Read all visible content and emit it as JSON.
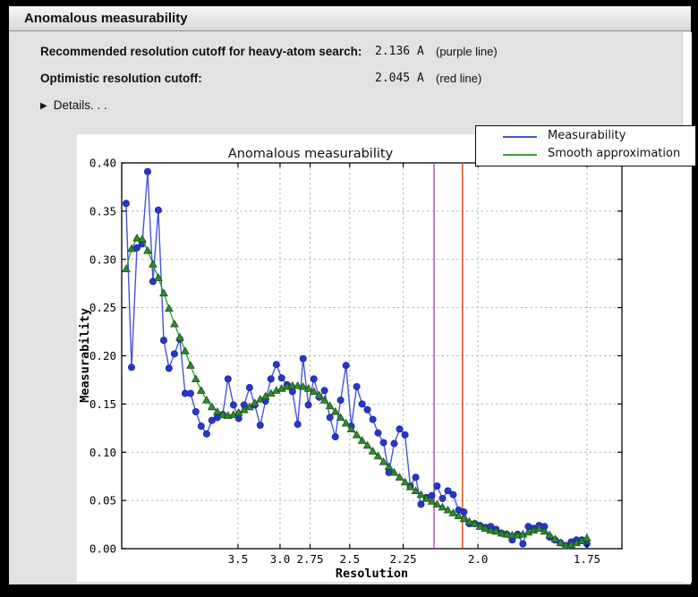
{
  "window": {
    "title": "Anomalous measurability"
  },
  "info_rows": [
    {
      "label": "Recommended resolution cutoff for heavy-atom search:",
      "value": "2.136 A",
      "note": "(purple line)"
    },
    {
      "label": "Optimistic resolution cutoff:",
      "value": "2.045 A",
      "note": "(red line)"
    }
  ],
  "details": {
    "icon": "right-triangle",
    "label": "Details. . ."
  },
  "chart_data": {
    "type": "line",
    "title": "Anomalous measurability",
    "xlabel": "Resolution",
    "ylabel": "Measurability",
    "x_axis_scale": "linear in 1/d^2, resolution d in Angstrom decreasing to the right",
    "x_range_inv_d_sq": [
      0,
      0.351
    ],
    "ylim": [
      0,
      0.4
    ],
    "y_ticks": [
      "0.00",
      "0.05",
      "0.10",
      "0.15",
      "0.20",
      "0.25",
      "0.30",
      "0.35",
      "0.40"
    ],
    "x_ticks": [
      {
        "label": "3.5",
        "inv_d_sq": 0.0816
      },
      {
        "label": "3.0",
        "inv_d_sq": 0.1111
      },
      {
        "label": "2.75",
        "inv_d_sq": 0.1322
      },
      {
        "label": "2.5",
        "inv_d_sq": 0.16
      },
      {
        "label": "2.25",
        "inv_d_sq": 0.1975
      },
      {
        "label": "2.0",
        "inv_d_sq": 0.25
      },
      {
        "label": "1.75",
        "inv_d_sq": 0.3265
      }
    ],
    "grid": true,
    "legend_position": "top-right",
    "x_inv_d_sq": [
      0.0031,
      0.0069,
      0.0107,
      0.0144,
      0.0182,
      0.0219,
      0.0257,
      0.0295,
      0.0332,
      0.037,
      0.0408,
      0.0445,
      0.0483,
      0.052,
      0.0558,
      0.0596,
      0.0633,
      0.0671,
      0.0709,
      0.0746,
      0.0784,
      0.0821,
      0.0859,
      0.0897,
      0.0934,
      0.0972,
      0.1009,
      0.1047,
      0.1085,
      0.1122,
      0.116,
      0.1198,
      0.1235,
      0.1273,
      0.131,
      0.1348,
      0.1386,
      0.1423,
      0.1461,
      0.1499,
      0.1536,
      0.1574,
      0.1611,
      0.1649,
      0.1687,
      0.1724,
      0.1762,
      0.1799,
      0.1837,
      0.1875,
      0.1912,
      0.195,
      0.1988,
      0.2025,
      0.2063,
      0.21,
      0.2138,
      0.2176,
      0.2213,
      0.2251,
      0.2289,
      0.2326,
      0.2364,
      0.2401,
      0.2439,
      0.2477,
      0.2514,
      0.2552,
      0.2589,
      0.2627,
      0.2665,
      0.2702,
      0.274,
      0.2778,
      0.2815,
      0.2853,
      0.289,
      0.2928,
      0.2966,
      0.3003,
      0.3041,
      0.3079,
      0.3116,
      0.3154,
      0.3191,
      0.3229,
      0.3264
    ],
    "series": [
      {
        "name": "Measurability",
        "marker": "circle",
        "line_color": "#4555dd",
        "marker_color": "#2537cf",
        "marker_edge": "#18269c",
        "values": [
          0.358,
          0.188,
          0.312,
          0.316,
          0.391,
          0.277,
          0.351,
          0.216,
          0.187,
          0.202,
          0.217,
          0.161,
          0.161,
          0.142,
          0.127,
          0.119,
          0.133,
          0.136,
          0.139,
          0.176,
          0.149,
          0.135,
          0.149,
          0.167,
          0.149,
          0.128,
          0.153,
          0.176,
          0.191,
          0.177,
          0.17,
          0.163,
          0.129,
          0.197,
          0.149,
          0.176,
          0.157,
          0.164,
          0.136,
          0.116,
          0.154,
          0.19,
          0.127,
          0.168,
          0.15,
          0.144,
          0.134,
          0.12,
          0.11,
          0.079,
          0.109,
          0.124,
          0.118,
          0.065,
          0.074,
          0.046,
          0.053,
          0.055,
          0.065,
          0.052,
          0.06,
          0.056,
          0.04,
          0.038,
          0.026,
          0.026,
          0.024,
          0.022,
          0.023,
          0.02,
          0.016,
          0.015,
          0.009,
          0.015,
          0.005,
          0.023,
          0.021,
          0.024,
          0.023,
          0.012,
          0.009,
          0.006,
          0.003,
          0.007,
          0.009,
          0.009,
          0.005
        ]
      },
      {
        "name": "Smooth approximation",
        "marker": "triangle",
        "line_color": "#3d9e3d",
        "marker_color": "#2e8b2e",
        "marker_edge": "#174f17",
        "values": [
          0.29,
          0.311,
          0.322,
          0.321,
          0.309,
          0.295,
          0.281,
          0.265,
          0.249,
          0.233,
          0.219,
          0.205,
          0.19,
          0.176,
          0.164,
          0.154,
          0.147,
          0.142,
          0.139,
          0.138,
          0.139,
          0.141,
          0.144,
          0.147,
          0.151,
          0.155,
          0.158,
          0.161,
          0.164,
          0.166,
          0.168,
          0.169,
          0.169,
          0.168,
          0.166,
          0.163,
          0.159,
          0.154,
          0.148,
          0.142,
          0.136,
          0.13,
          0.124,
          0.118,
          0.112,
          0.107,
          0.101,
          0.096,
          0.09,
          0.085,
          0.079,
          0.074,
          0.069,
          0.064,
          0.06,
          0.056,
          0.052,
          0.049,
          0.046,
          0.043,
          0.04,
          0.037,
          0.034,
          0.031,
          0.028,
          0.026,
          0.023,
          0.021,
          0.019,
          0.018,
          0.016,
          0.015,
          0.014,
          0.014,
          0.015,
          0.017,
          0.019,
          0.021,
          0.018,
          0.014,
          0.01,
          0.006,
          0.003,
          0.004,
          0.006,
          0.008,
          0.011
        ]
      }
    ],
    "vlines": [
      {
        "name": "purple line",
        "resolution_A": 2.136,
        "inv_d_sq": 0.2192,
        "color": "#b845c0"
      },
      {
        "name": "red line",
        "resolution_A": 2.045,
        "inv_d_sq": 0.2391,
        "color": "#d9410e"
      }
    ]
  }
}
